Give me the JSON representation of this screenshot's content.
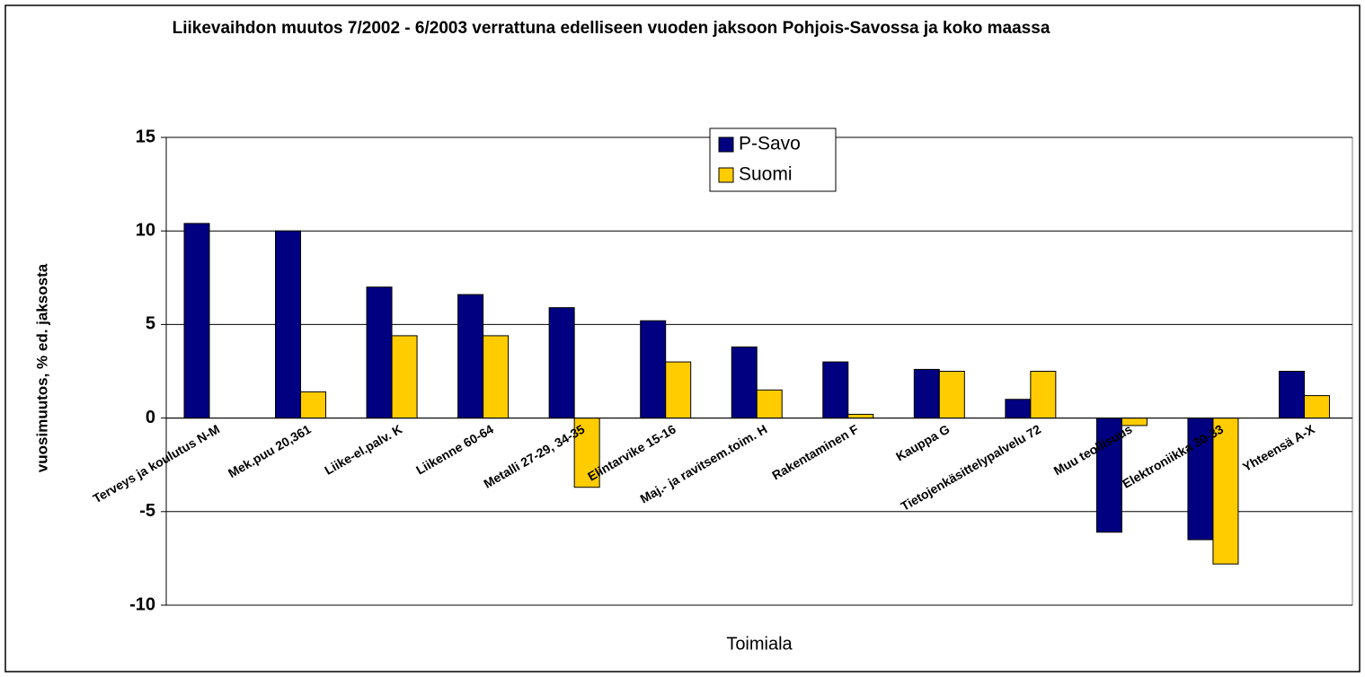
{
  "chart_data": {
    "type": "bar",
    "title": "Liikevaihdon muutos 7/2002 - 6/2003 verrattuna edelliseen vuoden jaksoon Pohjois-Savossa ja koko maassa",
    "x_label": "Toimiala",
    "y_label": "vuosimuutos, % ed. jaksosta",
    "categories": [
      "Terveys ja koulutus N-M",
      "Mek.puu 20,361",
      "Liike-el.palv. K",
      "Liikenne 60-64",
      "Metalli 27-29, 34-35",
      "Elintarvike 15-16",
      "Maj.- ja ravitsem.toim. H",
      "Rakentaminen F",
      "Kauppa G",
      "Tietojenkäsittelypalvelu 72",
      "Muu teollisuus",
      "Elektroniikka 30-33",
      "Yhteensä A-X"
    ],
    "series": [
      {
        "name": "P-Savo",
        "color": "#000080",
        "values": [
          10.4,
          10.0,
          7.0,
          6.6,
          5.9,
          5.2,
          3.8,
          3.0,
          2.6,
          1.0,
          -6.1,
          -6.5,
          2.5
        ]
      },
      {
        "name": "Suomi",
        "color": "#ffcc00",
        "values": [
          null,
          1.4,
          4.4,
          4.4,
          -3.7,
          3.0,
          1.5,
          0.2,
          2.5,
          2.5,
          -0.4,
          -7.8,
          1.2
        ]
      }
    ],
    "ylim": [
      -10,
      15
    ],
    "yticks": [
      -10,
      -5,
      0,
      5,
      10,
      15
    ],
    "grid": true,
    "legend": "top"
  }
}
